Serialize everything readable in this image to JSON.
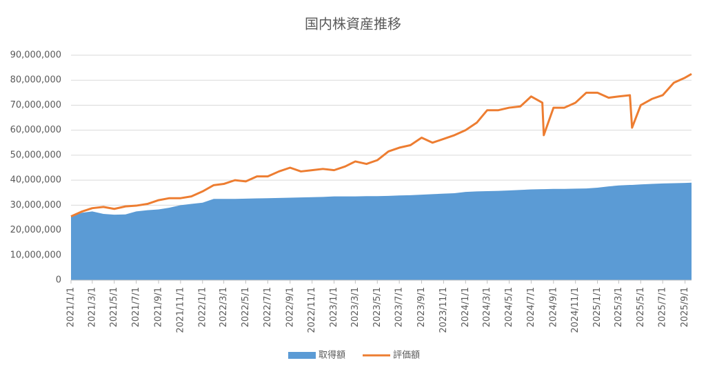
{
  "chart_data": {
    "type": "area-line",
    "title": "国内株資産推移",
    "x": [
      "2021/1/1",
      "2021/2/1",
      "2021/3/1",
      "2021/4/1",
      "2021/5/1",
      "2021/6/1",
      "2021/7/1",
      "2021/8/1",
      "2021/9/1",
      "2021/10/1",
      "2021/11/1",
      "2021/12/1",
      "2022/1/1",
      "2022/2/1",
      "2022/3/1",
      "2022/4/1",
      "2022/5/1",
      "2022/6/1",
      "2022/7/1",
      "2022/8/1",
      "2022/9/1",
      "2022/10/1",
      "2022/11/1",
      "2022/12/1",
      "2023/1/1",
      "2023/2/1",
      "2023/3/1",
      "2023/4/1",
      "2023/5/1",
      "2023/6/1",
      "2023/7/1",
      "2023/8/1",
      "2023/9/1",
      "2023/10/1",
      "2023/11/1",
      "2023/12/1",
      "2024/1/1",
      "2024/2/1",
      "2024/3/1",
      "2024/4/1",
      "2024/5/1",
      "2024/6/1",
      "2024/7/1",
      "2024/8/1",
      "2024/8/5",
      "2024/9/1",
      "2024/10/1",
      "2024/11/1",
      "2024/12/1",
      "2025/1/1",
      "2025/2/1",
      "2025/3/1",
      "2025/4/1",
      "2025/4/7",
      "2025/5/1",
      "2025/6/1",
      "2025/7/1",
      "2025/8/1",
      "2025/9/1",
      "2025/9/19"
    ],
    "series": [
      {
        "name": "取得額",
        "kind": "area",
        "color": "#5b9bd5",
        "values": [
          25500000,
          27000000,
          27500000,
          26500000,
          26200000,
          26300000,
          27500000,
          28000000,
          28300000,
          29000000,
          30000000,
          30500000,
          31000000,
          32500000,
          32500000,
          32500000,
          32600000,
          32700000,
          32800000,
          32900000,
          33000000,
          33100000,
          33200000,
          33300000,
          33500000,
          33500000,
          33500000,
          33600000,
          33600000,
          33700000,
          33900000,
          34000000,
          34200000,
          34400000,
          34600000,
          34800000,
          35300000,
          35500000,
          35600000,
          35700000,
          35900000,
          36100000,
          36300000,
          36400000,
          36400000,
          36500000,
          36500000,
          36600000,
          36700000,
          37000000,
          37500000,
          37900000,
          38100000,
          38100000,
          38300000,
          38500000,
          38700000,
          38800000,
          38900000,
          39000000
        ]
      },
      {
        "name": "評価額",
        "kind": "line",
        "color": "#ed7d31",
        "values": [
          25500000,
          27500000,
          28800000,
          29300000,
          28500000,
          29500000,
          29800000,
          30500000,
          32000000,
          32800000,
          32800000,
          33500000,
          35500000,
          38000000,
          38500000,
          40000000,
          39500000,
          41500000,
          41500000,
          43500000,
          45000000,
          43500000,
          44000000,
          44500000,
          44000000,
          45500000,
          47500000,
          46500000,
          48000000,
          51500000,
          53000000,
          54000000,
          57000000,
          55000000,
          56500000,
          58000000,
          60000000,
          63000000,
          68000000,
          68000000,
          69000000,
          69500000,
          73500000,
          71000000,
          58000000,
          69000000,
          69000000,
          71000000,
          75000000,
          75000000,
          73000000,
          73500000,
          74000000,
          61000000,
          70000000,
          72500000,
          74000000,
          79000000,
          81000000,
          82500000
        ]
      }
    ],
    "xlim": [
      "2021/1/1",
      "2025/9/19"
    ],
    "xticks": [
      "2021/1/1",
      "2021/3/1",
      "2021/5/1",
      "2021/7/1",
      "2021/9/1",
      "2021/11/1",
      "2022/1/1",
      "2022/3/1",
      "2022/5/1",
      "2022/7/1",
      "2022/9/1",
      "2022/11/1",
      "2023/1/1",
      "2023/3/1",
      "2023/5/1",
      "2023/7/1",
      "2023/9/1",
      "2023/11/1",
      "2024/1/1",
      "2024/3/1",
      "2024/5/1",
      "2024/7/1",
      "2024/9/1",
      "2024/11/1",
      "2025/1/1",
      "2025/3/1",
      "2025/5/1",
      "2025/7/1",
      "2025/9/1"
    ],
    "ylim": [
      0,
      90000000
    ],
    "yticks": [
      0,
      {
        "value": 10000000,
        "label": "10,000,000"
      },
      {
        "value": 20000000,
        "label": "20,000,000"
      },
      {
        "value": 30000000,
        "label": "30,000,000"
      },
      {
        "value": 40000000,
        "label": "40,000,000"
      },
      {
        "value": 50000000,
        "label": "50,000,000"
      },
      {
        "value": 60000000,
        "label": "60,000,000"
      },
      {
        "value": 70000000,
        "label": "70,000,000"
      },
      {
        "value": 80000000,
        "label": "80,000,000"
      },
      {
        "value": 90000000,
        "label": "90,000,000"
      }
    ],
    "grid": true,
    "legend": "bottom"
  }
}
